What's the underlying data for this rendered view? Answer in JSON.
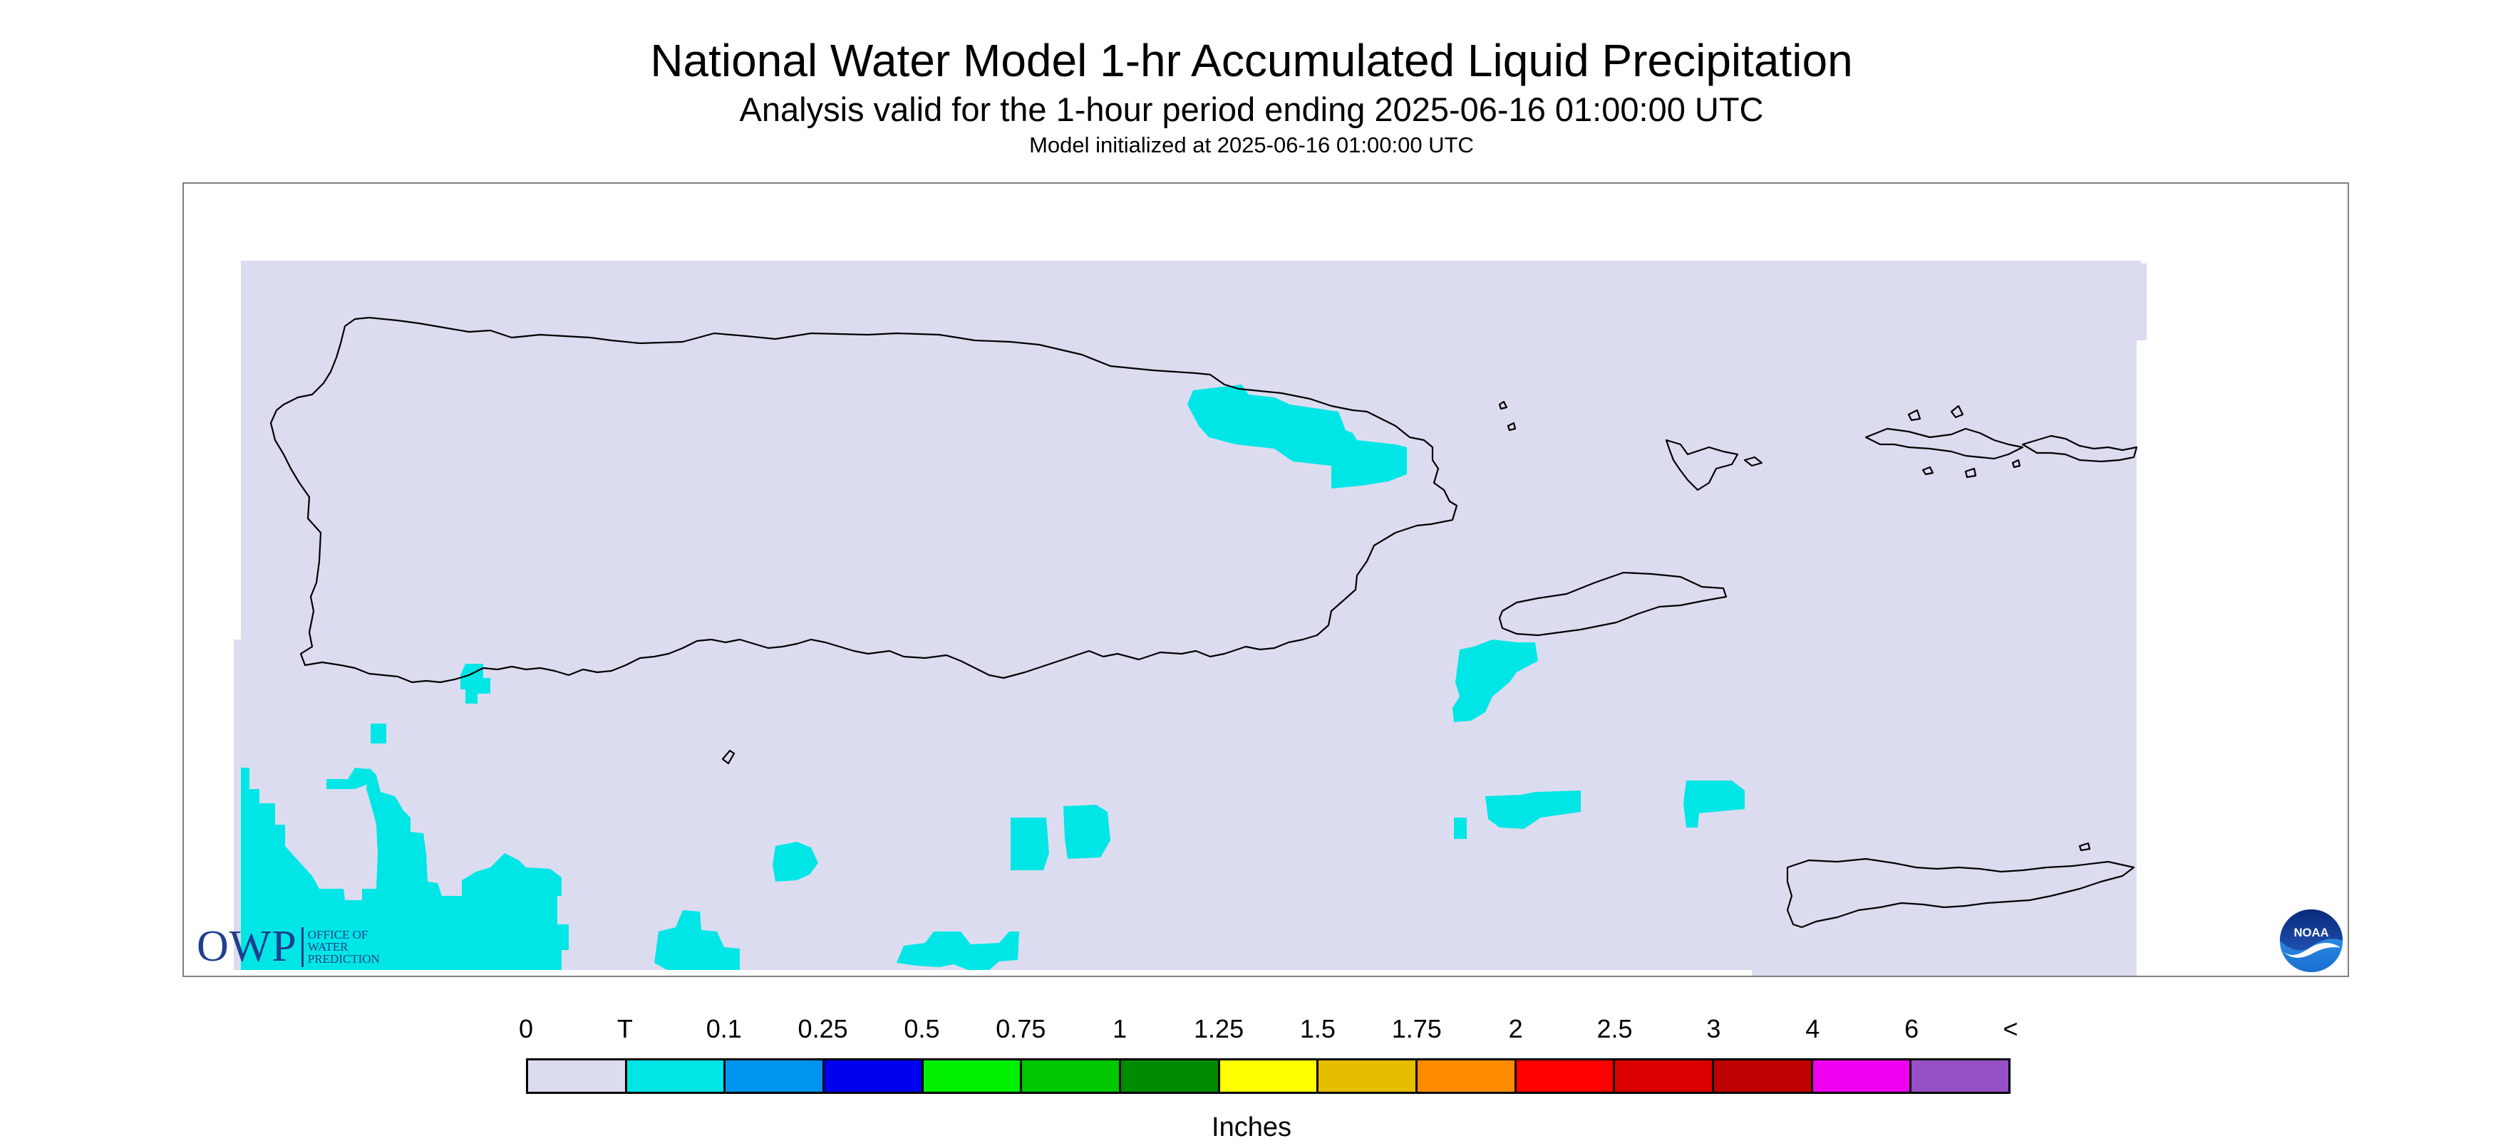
{
  "header": {
    "title": "National Water Model 1-hr Accumulated Liquid Precipitation",
    "subtitle": "Analysis valid for the 1-hour period ending 2025-06-16 01:00:00 UTC",
    "init": "Model initialized at 2025-06-16 01:00:00 UTC"
  },
  "legend": {
    "ticks": [
      "0",
      "T",
      "0.1",
      "0.25",
      "0.5",
      "0.75",
      "1",
      "1.25",
      "1.5",
      "1.75",
      "2",
      "2.5",
      "3",
      "4",
      "6",
      "<"
    ],
    "colors": [
      "#dcdcf0",
      "#00e6e6",
      "#0096f0",
      "#0000f0",
      "#00f000",
      "#00c800",
      "#008c00",
      "#ffff00",
      "#e6be00",
      "#ff8c00",
      "#ff0000",
      "#dc0000",
      "#be0000",
      "#f000f0",
      "#9650c8"
    ],
    "units": "Inches"
  },
  "map": {
    "background_color": "#dcdcf0",
    "trace_color": "#00e6e6",
    "coastline_color": "#000000",
    "regions": [
      "Puerto Rico",
      "Vieques",
      "Culebra",
      "U.S. Virgin Islands",
      "St. Croix"
    ]
  },
  "logos": {
    "owp": {
      "abbr": "OWP",
      "lines": [
        "OFFICE OF",
        "WATER",
        "PREDICTION"
      ]
    },
    "noaa": {
      "text": "NOAA"
    }
  }
}
